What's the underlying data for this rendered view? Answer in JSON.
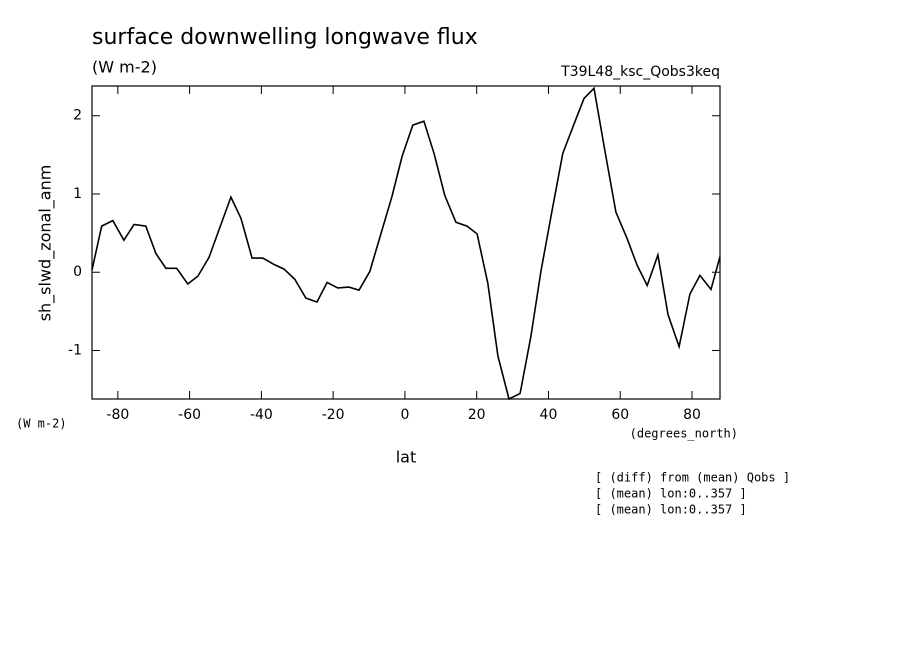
{
  "chart_data": {
    "type": "line",
    "title": "surface downwelling longwave flux",
    "subtitle": "(W m-2)",
    "run_label": "T39L48_ksc_Qobs3keq",
    "y_label": "sh_slwd_zonal_anm",
    "y_unit": "(W m-2)",
    "x_unit": "(degrees_north)",
    "x_label": "lat",
    "notes": [
      "[ (diff) from (mean) Qobs ]",
      "[ (mean) lon:0..357 ]",
      "[ (mean) lon:0..357 ]"
    ],
    "xlim": [
      -87.2,
      87.8
    ],
    "ylim": [
      -1.62,
      2.38
    ],
    "xticks": [
      -80,
      -60,
      -40,
      -20,
      0,
      20,
      40,
      60,
      80
    ],
    "yticks": [
      -1,
      0,
      1,
      2
    ],
    "x": [
      -87.2,
      -84.5,
      -81.4,
      -78.3,
      -75.5,
      -72.2,
      -69.4,
      -66.6,
      -63.6,
      -60.5,
      -57.7,
      -54.6,
      -51.6,
      -48.5,
      -45.7,
      -42.6,
      -39.6,
      -36.5,
      -33.7,
      -30.7,
      -27.6,
      -24.5,
      -21.7,
      -18.7,
      -15.6,
      -12.8,
      -9.8,
      -6.7,
      -3.6,
      -0.8,
      2.2,
      5.3,
      8.1,
      11.1,
      14.2,
      17.3,
      20.1,
      23.1,
      25.9,
      29.0,
      32.1,
      35.1,
      37.9,
      41.0,
      44.0,
      47.1,
      49.9,
      52.7,
      55.7,
      58.8,
      61.9,
      64.7,
      67.5,
      70.5,
      73.3,
      76.4,
      79.4,
      82.2,
      85.3,
      87.8
    ],
    "series": [
      {
        "name": "sh_slwd_zonal_anm",
        "color": "#000000",
        "values": [
          0.03,
          0.59,
          0.66,
          0.41,
          0.61,
          0.59,
          0.24,
          0.05,
          0.05,
          -0.15,
          -0.05,
          0.19,
          0.57,
          0.96,
          0.69,
          0.18,
          0.18,
          0.1,
          0.04,
          -0.09,
          -0.33,
          -0.38,
          -0.13,
          -0.2,
          -0.19,
          -0.23,
          0.01,
          0.49,
          0.97,
          1.48,
          1.88,
          1.93,
          1.52,
          0.98,
          0.64,
          0.59,
          0.49,
          -0.14,
          -1.07,
          -1.62,
          -1.55,
          -0.82,
          0.01,
          0.79,
          1.52,
          1.89,
          2.22,
          2.35,
          1.56,
          0.77,
          0.43,
          0.09,
          -0.17,
          0.22,
          -0.54,
          -0.95,
          -0.28,
          -0.04,
          -0.22,
          0.2
        ]
      }
    ]
  }
}
